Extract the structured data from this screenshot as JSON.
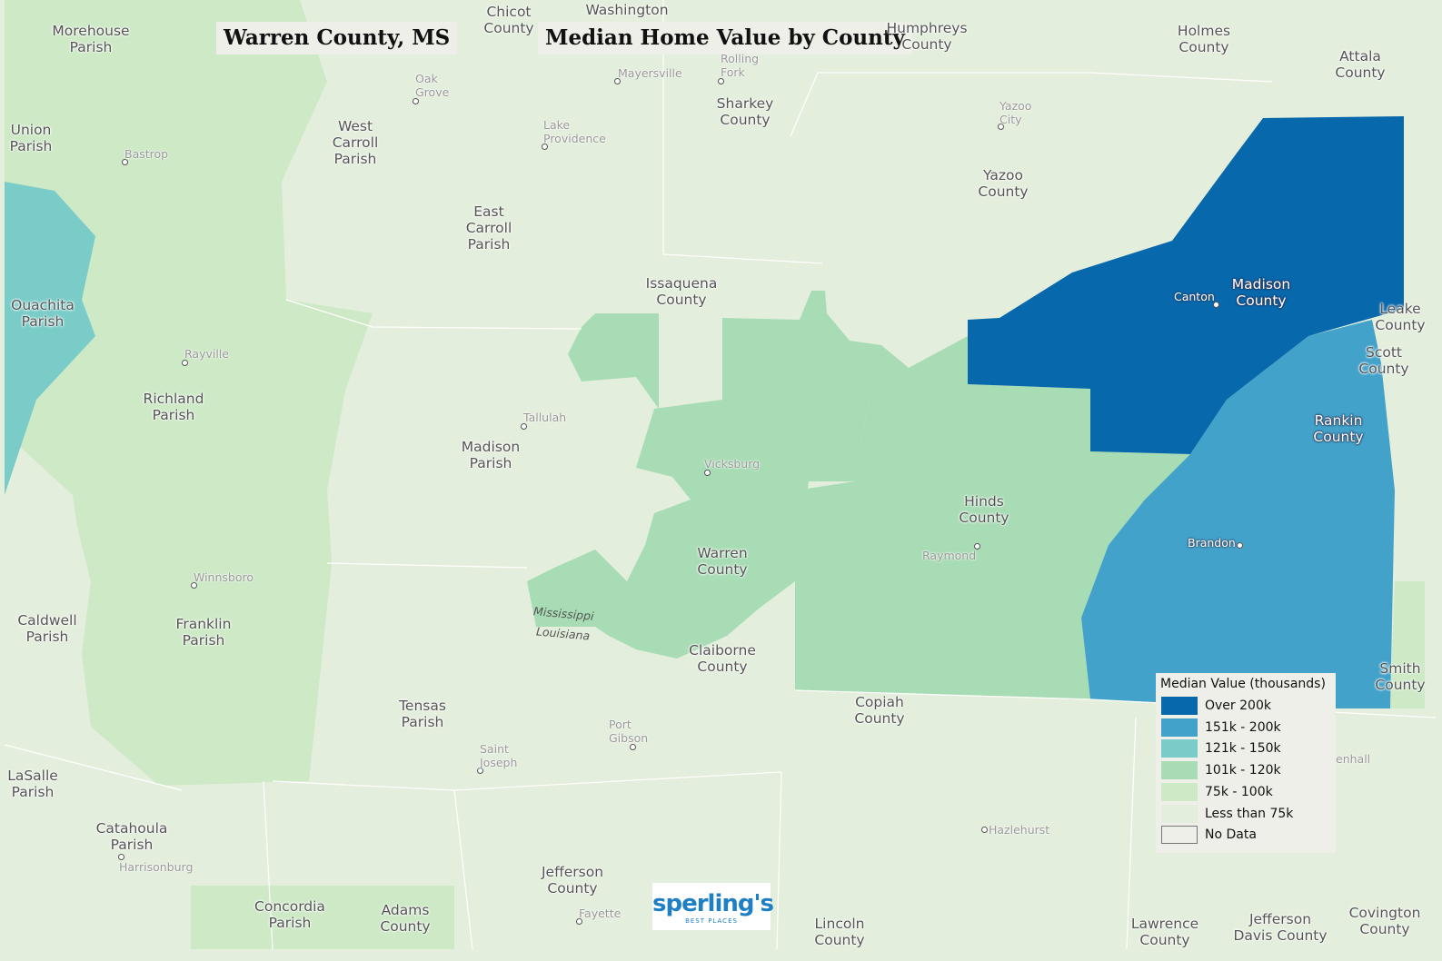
{
  "header": {
    "location_title": "Warren County, MS",
    "map_title": "Median Home Value by County"
  },
  "legend": {
    "title": "Median Value (thousands)",
    "items": [
      {
        "label": "Over 200k",
        "color": "#0868ac"
      },
      {
        "label": "151k - 200k",
        "color": "#43a2ca"
      },
      {
        "label": "121k - 150k",
        "color": "#7accc8"
      },
      {
        "label": "101k - 120k",
        "color": "#a8dcb5"
      },
      {
        "label": "75k - 100k",
        "color": "#cde9c6"
      },
      {
        "label": "Less than 75k",
        "color": "#e3eedc"
      },
      {
        "label": "No Data",
        "color": "#efefe9"
      }
    ]
  },
  "regions": [
    [
      "Morehouse",
      "Parish"
    ],
    [
      "Chicot",
      "County"
    ],
    [
      "Washington"
    ],
    [
      "Humphreys",
      "County"
    ],
    [
      "Holmes",
      "County"
    ],
    [
      "Attala",
      "County"
    ],
    [
      "Union",
      "Parish"
    ],
    [
      "West",
      "Carroll",
      "Parish"
    ],
    [
      "Sharkey",
      "County"
    ],
    [
      "Yazoo",
      "County"
    ],
    [
      "East",
      "Carroll",
      "Parish"
    ],
    [
      "Issaquena",
      "County"
    ],
    [
      "Madison",
      "County"
    ],
    [
      "Leake",
      "County"
    ],
    [
      "Ouachita",
      "Parish"
    ],
    [
      "Scott",
      "County"
    ],
    [
      "Richland",
      "Parish"
    ],
    [
      "Rankin",
      "County"
    ],
    [
      "Madison",
      "Parish"
    ],
    [
      "Hinds",
      "County"
    ],
    [
      "Warren",
      "County"
    ],
    [
      "Caldwell",
      "Parish"
    ],
    [
      "Franklin",
      "Parish"
    ],
    [
      "Claiborne",
      "County"
    ],
    [
      "Smith",
      "County"
    ],
    [
      "Copiah",
      "County"
    ],
    [
      "Tensas",
      "Parish"
    ],
    [
      "LaSalle",
      "Parish"
    ],
    [
      "Catahoula",
      "Parish"
    ],
    [
      "Jefferson",
      "County"
    ],
    [
      "Concordia",
      "Parish"
    ],
    [
      "Adams",
      "County"
    ],
    [
      "Lincoln",
      "County"
    ],
    [
      "Lawrence",
      "County"
    ],
    [
      "Jefferson",
      "Davis County"
    ],
    [
      "Covington",
      "County"
    ]
  ],
  "cities": [
    [
      "Bastrop"
    ],
    [
      "Oak",
      "Grove"
    ],
    [
      "Mayersville"
    ],
    [
      "Rolling",
      "Fork"
    ],
    [
      "Lake",
      "Providence"
    ],
    [
      "Yazoo",
      "City"
    ],
    [
      "Rayville"
    ],
    [
      "Tallulah"
    ],
    [
      "Vicksburg"
    ],
    [
      "Canton"
    ],
    [
      "Winnsboro"
    ],
    [
      "Raymond"
    ],
    [
      "Brandon"
    ],
    [
      "Port",
      "Gibson"
    ],
    [
      "Saint",
      "Joseph"
    ],
    [
      "Harrisonburg"
    ],
    [
      "Fayette"
    ],
    [
      "Hazlehurst"
    ],
    [
      "enhall"
    ]
  ],
  "state_labels": [
    "Mississippi",
    "Louisiana"
  ],
  "logo": {
    "name": "sperling's",
    "tagline": "BEST PLACES"
  }
}
